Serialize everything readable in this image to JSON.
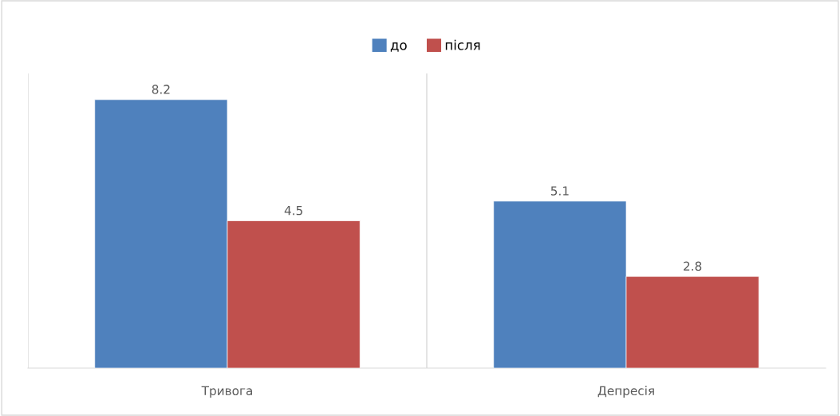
{
  "chart_data": {
    "type": "bar",
    "categories": [
      "Тривога",
      "Депресія"
    ],
    "series": [
      {
        "name": "до",
        "color": "#4f81bd",
        "values": [
          8.2,
          5.1
        ]
      },
      {
        "name": "після",
        "color": "#c0504d",
        "values": [
          4.5,
          2.8
        ]
      }
    ],
    "ylim": [
      0,
      9
    ],
    "data_labels": true,
    "grid": "x",
    "legend": "top",
    "tick_labels": "x"
  }
}
